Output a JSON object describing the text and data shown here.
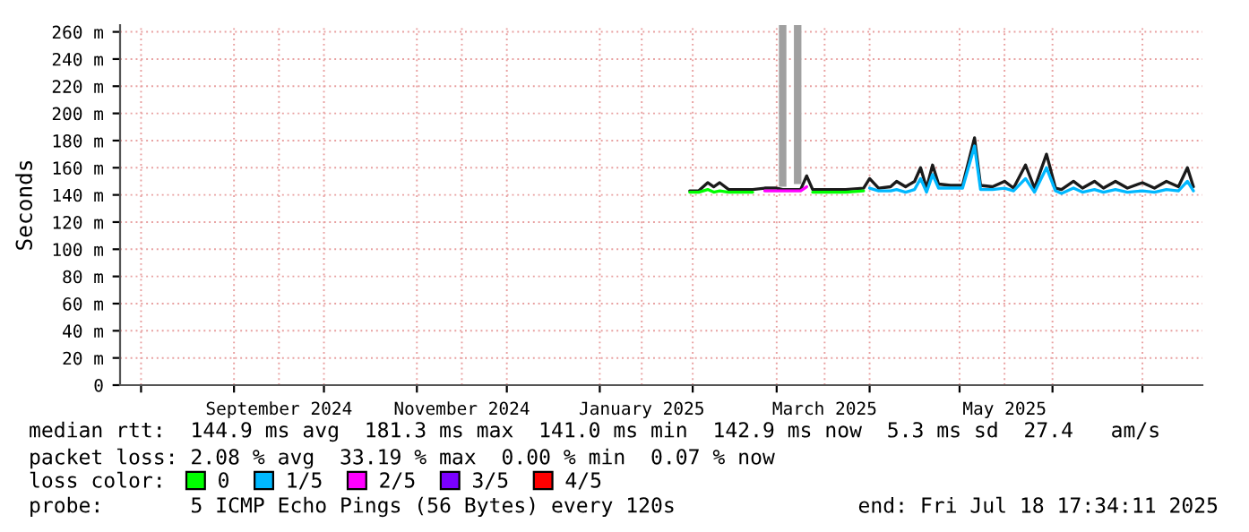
{
  "chart_data": {
    "type": "line",
    "ylabel": "Seconds",
    "x": [
      "2025-01-31",
      "2025-02-03",
      "2025-02-06",
      "2025-02-08",
      "2025-02-10",
      "2025-02-13",
      "2025-02-17",
      "2025-02-21",
      "2025-02-25",
      "2025-03-01",
      "2025-03-03",
      "2025-03-05",
      "2025-03-07",
      "2025-03-09",
      "2025-03-11",
      "2025-03-13",
      "2025-03-18",
      "2025-03-24",
      "2025-03-30",
      "2025-04-01",
      "2025-04-04",
      "2025-04-08",
      "2025-04-10",
      "2025-04-13",
      "2025-04-16",
      "2025-04-18",
      "2025-04-20",
      "2025-04-22",
      "2025-04-24",
      "2025-04-28",
      "2025-05-02",
      "2025-05-06",
      "2025-05-08",
      "2025-05-12",
      "2025-05-16",
      "2025-05-19",
      "2025-05-23",
      "2025-05-26",
      "2025-05-30",
      "2025-06-02",
      "2025-06-04",
      "2025-06-08",
      "2025-06-11",
      "2025-06-15",
      "2025-06-18",
      "2025-06-22",
      "2025-06-26",
      "2025-07-01",
      "2025-07-05",
      "2025-07-09",
      "2025-07-13",
      "2025-07-16",
      "2025-07-18"
    ],
    "series": [
      {
        "type": "bar",
        "color": "#a0a0a0",
        "x": [
          "2025-03-03",
          "2025-03-08"
        ],
        "values": [
          119,
          117
        ],
        "base": [
          146,
          148
        ]
      },
      {
        "color": "#1a1a1a",
        "values": [
          143,
          143,
          149,
          146,
          149,
          144,
          144,
          144,
          145,
          145,
          144,
          144,
          144,
          144,
          154,
          144,
          144,
          144,
          145,
          152,
          145,
          146,
          150,
          146,
          150,
          160,
          145,
          162,
          148,
          147,
          147,
          182,
          147,
          146,
          150,
          145,
          162,
          145,
          170,
          145,
          144,
          150,
          145,
          150,
          145,
          150,
          145,
          149,
          145,
          150,
          146,
          160,
          146
        ]
      },
      {
        "name": "0",
        "color": "#00ff00",
        "values": [
          142,
          142,
          144,
          142,
          143,
          142,
          142,
          142,
          null,
          null,
          null,
          null,
          null,
          null,
          null,
          142,
          142,
          142,
          143,
          null,
          null,
          null,
          null,
          null,
          null,
          null,
          null,
          null,
          null,
          null,
          null,
          null,
          null,
          null,
          null,
          null,
          null,
          null,
          null,
          null,
          null,
          null,
          null,
          null,
          null,
          null,
          null,
          null,
          null,
          null,
          null,
          null,
          null
        ]
      },
      {
        "name": "1/5",
        "color": "#00b8ff",
        "values": [
          null,
          null,
          null,
          null,
          null,
          null,
          null,
          null,
          null,
          null,
          null,
          null,
          null,
          null,
          null,
          null,
          null,
          null,
          null,
          145,
          143,
          143,
          144,
          142,
          144,
          152,
          142,
          155,
          145,
          145,
          145,
          176,
          144,
          144,
          145,
          143,
          152,
          142,
          160,
          143,
          141,
          145,
          142,
          144,
          142,
          144,
          142,
          143,
          142,
          144,
          143,
          150,
          143
        ]
      },
      {
        "name": "2/5",
        "color": "#ff00ff",
        "values": [
          null,
          null,
          null,
          null,
          null,
          null,
          null,
          null,
          143,
          143,
          143,
          143,
          143,
          143,
          146,
          null,
          null,
          null,
          null,
          null,
          null,
          null,
          null,
          null,
          null,
          null,
          null,
          null,
          null,
          null,
          null,
          null,
          null,
          null,
          null,
          null,
          null,
          null,
          null,
          null,
          null,
          null,
          null,
          null,
          null,
          null,
          null,
          null,
          null,
          null,
          null,
          null,
          null
        ]
      },
      {
        "type": "line",
        "name": "3/5",
        "color": "#7b00ff",
        "values": [
          null,
          null,
          null,
          null,
          null,
          null,
          null,
          null,
          null,
          null,
          null,
          null,
          null,
          null,
          null,
          null,
          null,
          null,
          null,
          null,
          null,
          null,
          null,
          null,
          null,
          null,
          null,
          null,
          null,
          null,
          null,
          null,
          null,
          null,
          null,
          null,
          null,
          null,
          null,
          null,
          null,
          null,
          null,
          null,
          null,
          null,
          null,
          null,
          null,
          null,
          null,
          null,
          null
        ]
      },
      {
        "type": "line",
        "name": "4/5",
        "color": "#ff0000",
        "values": [
          null,
          null,
          null,
          null,
          null,
          null,
          null,
          null,
          null,
          null,
          null,
          null,
          null,
          null,
          null,
          null,
          null,
          null,
          null,
          null,
          null,
          null,
          null,
          null,
          null,
          null,
          null,
          null,
          null,
          null,
          null,
          null,
          null,
          null,
          null,
          null,
          null,
          null,
          null,
          null,
          null,
          null,
          null,
          null,
          null,
          null,
          null,
          null,
          null,
          null,
          null,
          null,
          null
        ]
      }
    ],
    "xlim": [
      "2024-07-25",
      "2025-07-21"
    ],
    "xticks": [
      {
        "value": "2024-08-01",
        "label": null
      },
      {
        "value": "2024-09-01",
        "label": null
      },
      {
        "value": "2024-09-16",
        "label": "September 2024"
      },
      {
        "value": "2024-10-01",
        "label": null
      },
      {
        "value": "2024-11-01",
        "label": null
      },
      {
        "value": "2024-11-16",
        "label": "November 2024"
      },
      {
        "value": "2024-12-01",
        "label": null
      },
      {
        "value": "2025-01-01",
        "label": null
      },
      {
        "value": "2025-01-15",
        "label": "January 2025"
      },
      {
        "value": "2025-02-01",
        "label": null
      },
      {
        "value": "2025-03-01",
        "label": null
      },
      {
        "value": "2025-03-17",
        "label": "March 2025"
      },
      {
        "value": "2025-04-01",
        "label": null
      },
      {
        "value": "2025-05-01",
        "label": null
      },
      {
        "value": "2025-05-16",
        "label": "May 2025"
      },
      {
        "value": "2025-06-01",
        "label": null
      },
      {
        "value": "2025-07-01",
        "label": null
      }
    ],
    "ylim": [
      0,
      265
    ],
    "yticks": [
      0,
      {
        "value": 20,
        "label": "20 m"
      },
      {
        "value": 40,
        "label": "40 m"
      },
      {
        "value": 60,
        "label": "60 m"
      },
      {
        "value": 80,
        "label": "80 m"
      },
      {
        "value": 100,
        "label": "100 m"
      },
      {
        "value": 120,
        "label": "120 m"
      },
      {
        "value": 140,
        "label": "140 m"
      },
      {
        "value": 160,
        "label": "160 m"
      },
      {
        "value": 180,
        "label": "180 m"
      },
      {
        "value": 200,
        "label": "200 m"
      },
      {
        "value": 220,
        "label": "220 m"
      },
      {
        "value": 240,
        "label": "240 m"
      },
      {
        "value": 260,
        "label": "260 m"
      }
    ],
    "grid": true,
    "legend": "bottom",
    "annotations": [
      "median rtt:  144.9 ms avg  181.3 ms max  141.0 ms min  142.9 ms now  5.3 ms sd  27.4   am/s",
      "packet loss: 2.08 % avg  33.19 % max  0.00 % min  0.07 % now",
      "loss color:",
      "probe:       5 ICMP Echo Pings (56 Bytes) every 120s",
      "end: Fri Jul 18 17:34:11 2025"
    ]
  }
}
